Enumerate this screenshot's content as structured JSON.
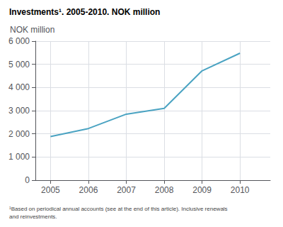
{
  "chart_data": {
    "type": "line",
    "title": "Investments¹. 2005-2010. NOK million",
    "ylabel": "NOK million",
    "footnote": "¹Based on periodical annual accounts (see at the end of this article). Inclusive renewals\nand reinvestments.",
    "x": [
      2005,
      2006,
      2007,
      2008,
      2009,
      2010
    ],
    "values": [
      1880,
      2230,
      2850,
      3100,
      4720,
      5480
    ],
    "color": "#4AA3C2",
    "xlim": [
      2004.6,
      2010.8
    ],
    "xticks": [
      2005,
      2006,
      2007,
      2008,
      2009,
      2010
    ],
    "ylim": [
      0,
      6000
    ],
    "yticks": [
      0,
      {
        "value": 1000,
        "label": "1 000"
      },
      {
        "value": 2000,
        "label": "2 000"
      },
      {
        "value": 3000,
        "label": "3 000"
      },
      {
        "value": 4000,
        "label": "4 000"
      },
      {
        "value": 5000,
        "label": "5 000"
      },
      {
        "value": 6000,
        "label": "6 000"
      }
    ],
    "grid": true
  }
}
